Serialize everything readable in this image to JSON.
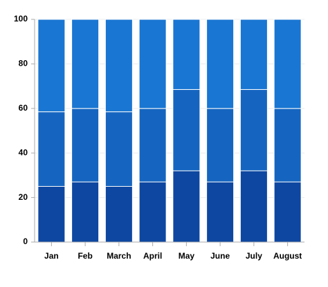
{
  "chart_data": {
    "type": "stacked_bar",
    "categories": [
      "Jan",
      "Feb",
      "March",
      "April",
      "May",
      "June",
      "July",
      "August"
    ],
    "series": [
      {
        "color": "#0d47a1",
        "values": [
          25,
          27,
          25,
          27,
          32,
          27,
          32,
          27
        ]
      },
      {
        "color": "#1565c0",
        "values": [
          33.5,
          33,
          33.5,
          33,
          36.5,
          33,
          36.5,
          33
        ]
      },
      {
        "color": "#1976d2",
        "values": [
          41.5,
          40,
          41.5,
          40,
          31.5,
          40,
          31.5,
          40
        ]
      }
    ],
    "ylim": [
      0,
      100
    ],
    "yticks": [
      0,
      20,
      40,
      60,
      80,
      100
    ],
    "grid": true
  }
}
